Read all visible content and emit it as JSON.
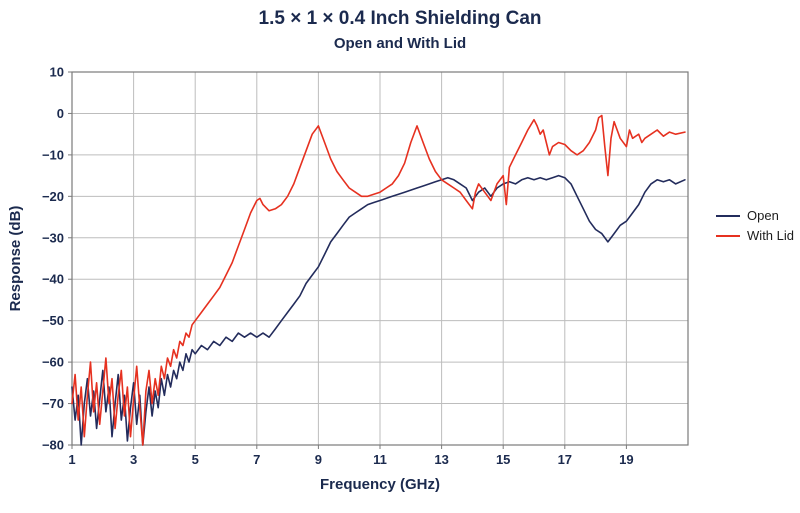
{
  "colors": {
    "background": "#ffffff",
    "title_text": "#1b2a4e",
    "axis_text": "#1b2a4e",
    "grid": "#bdbdbd",
    "frame": "#7a7a7a",
    "open_line": "#232c5c",
    "with_lid_line": "#e63120"
  },
  "chart_data": {
    "type": "line",
    "title": "1.5 × 1 × 0.4 Inch Shielding Can",
    "subtitle": "Open and With Lid",
    "xlabel": "Frequency (GHz)",
    "ylabel": "Response (dB)",
    "xlim": [
      1,
      21
    ],
    "ylim": [
      -80,
      10
    ],
    "xticks": [
      1,
      3,
      5,
      7,
      9,
      11,
      13,
      15,
      17,
      19
    ],
    "yticks": [
      10,
      0,
      -10,
      -20,
      -30,
      -40,
      -50,
      -60,
      -70,
      -80
    ],
    "grid": true,
    "legend_position": "right",
    "series": [
      {
        "name": "Open",
        "color": "#232c5c",
        "points": [
          [
            1.0,
            -66
          ],
          [
            1.1,
            -74
          ],
          [
            1.2,
            -68
          ],
          [
            1.3,
            -80
          ],
          [
            1.4,
            -70
          ],
          [
            1.5,
            -64
          ],
          [
            1.6,
            -73
          ],
          [
            1.7,
            -67
          ],
          [
            1.8,
            -76
          ],
          [
            1.9,
            -69
          ],
          [
            2.0,
            -62
          ],
          [
            2.1,
            -72
          ],
          [
            2.2,
            -66
          ],
          [
            2.3,
            -78
          ],
          [
            2.4,
            -70
          ],
          [
            2.5,
            -63
          ],
          [
            2.6,
            -74
          ],
          [
            2.7,
            -68
          ],
          [
            2.8,
            -79
          ],
          [
            2.9,
            -71
          ],
          [
            3.0,
            -65
          ],
          [
            3.1,
            -75
          ],
          [
            3.2,
            -68
          ],
          [
            3.3,
            -80
          ],
          [
            3.4,
            -72
          ],
          [
            3.5,
            -66
          ],
          [
            3.6,
            -73
          ],
          [
            3.7,
            -67
          ],
          [
            3.8,
            -71
          ],
          [
            3.9,
            -64
          ],
          [
            4.0,
            -68
          ],
          [
            4.1,
            -63
          ],
          [
            4.2,
            -66
          ],
          [
            4.3,
            -62
          ],
          [
            4.4,
            -64
          ],
          [
            4.5,
            -60
          ],
          [
            4.6,
            -62
          ],
          [
            4.7,
            -58
          ],
          [
            4.8,
            -60
          ],
          [
            4.9,
            -57
          ],
          [
            5.0,
            -58
          ],
          [
            5.2,
            -56
          ],
          [
            5.4,
            -57
          ],
          [
            5.6,
            -55
          ],
          [
            5.8,
            -56
          ],
          [
            6.0,
            -54
          ],
          [
            6.2,
            -55
          ],
          [
            6.4,
            -53
          ],
          [
            6.6,
            -54
          ],
          [
            6.8,
            -53
          ],
          [
            7.0,
            -54
          ],
          [
            7.2,
            -53
          ],
          [
            7.4,
            -54
          ],
          [
            7.6,
            -52
          ],
          [
            7.8,
            -50
          ],
          [
            8.0,
            -48
          ],
          [
            8.2,
            -46
          ],
          [
            8.4,
            -44
          ],
          [
            8.6,
            -41
          ],
          [
            8.8,
            -39
          ],
          [
            9.0,
            -37
          ],
          [
            9.2,
            -34
          ],
          [
            9.4,
            -31
          ],
          [
            9.6,
            -29
          ],
          [
            9.8,
            -27
          ],
          [
            10.0,
            -25
          ],
          [
            10.2,
            -24
          ],
          [
            10.4,
            -23
          ],
          [
            10.6,
            -22
          ],
          [
            10.8,
            -21.5
          ],
          [
            11.0,
            -21
          ],
          [
            11.2,
            -20.5
          ],
          [
            11.4,
            -20
          ],
          [
            11.6,
            -19.5
          ],
          [
            11.8,
            -19
          ],
          [
            12.0,
            -18.5
          ],
          [
            12.2,
            -18
          ],
          [
            12.4,
            -17.5
          ],
          [
            12.6,
            -17
          ],
          [
            12.8,
            -16.5
          ],
          [
            13.0,
            -16
          ],
          [
            13.2,
            -15.5
          ],
          [
            13.4,
            -16
          ],
          [
            13.6,
            -17
          ],
          [
            13.8,
            -18
          ],
          [
            14.0,
            -21
          ],
          [
            14.2,
            -19
          ],
          [
            14.4,
            -18
          ],
          [
            14.6,
            -20
          ],
          [
            14.8,
            -18
          ],
          [
            15.0,
            -17
          ],
          [
            15.2,
            -16.5
          ],
          [
            15.4,
            -17
          ],
          [
            15.6,
            -16
          ],
          [
            15.8,
            -15.5
          ],
          [
            16.0,
            -16
          ],
          [
            16.2,
            -15.5
          ],
          [
            16.4,
            -16
          ],
          [
            16.6,
            -15.5
          ],
          [
            16.8,
            -15
          ],
          [
            17.0,
            -15.5
          ],
          [
            17.2,
            -17
          ],
          [
            17.4,
            -20
          ],
          [
            17.6,
            -23
          ],
          [
            17.8,
            -26
          ],
          [
            18.0,
            -28
          ],
          [
            18.2,
            -29
          ],
          [
            18.4,
            -31
          ],
          [
            18.6,
            -29
          ],
          [
            18.8,
            -27
          ],
          [
            19.0,
            -26
          ],
          [
            19.2,
            -24
          ],
          [
            19.4,
            -22
          ],
          [
            19.6,
            -19
          ],
          [
            19.8,
            -17
          ],
          [
            20.0,
            -16
          ],
          [
            20.2,
            -16.5
          ],
          [
            20.4,
            -16
          ],
          [
            20.6,
            -17
          ],
          [
            20.9,
            -16
          ]
        ]
      },
      {
        "name": "With Lid",
        "color": "#e63120",
        "points": [
          [
            1.0,
            -70
          ],
          [
            1.1,
            -63
          ],
          [
            1.2,
            -74
          ],
          [
            1.3,
            -66
          ],
          [
            1.4,
            -78
          ],
          [
            1.5,
            -68
          ],
          [
            1.6,
            -60
          ],
          [
            1.7,
            -72
          ],
          [
            1.8,
            -65
          ],
          [
            1.9,
            -75
          ],
          [
            2.0,
            -67
          ],
          [
            2.1,
            -59
          ],
          [
            2.2,
            -70
          ],
          [
            2.3,
            -64
          ],
          [
            2.4,
            -76
          ],
          [
            2.5,
            -68
          ],
          [
            2.6,
            -62
          ],
          [
            2.7,
            -73
          ],
          [
            2.8,
            -66
          ],
          [
            2.9,
            -78
          ],
          [
            3.0,
            -69
          ],
          [
            3.1,
            -61
          ],
          [
            3.2,
            -71
          ],
          [
            3.3,
            -80
          ],
          [
            3.4,
            -67
          ],
          [
            3.5,
            -62
          ],
          [
            3.6,
            -70
          ],
          [
            3.7,
            -64
          ],
          [
            3.8,
            -68
          ],
          [
            3.9,
            -61
          ],
          [
            4.0,
            -64
          ],
          [
            4.1,
            -59
          ],
          [
            4.2,
            -61
          ],
          [
            4.3,
            -57
          ],
          [
            4.4,
            -59
          ],
          [
            4.5,
            -55
          ],
          [
            4.6,
            -56
          ],
          [
            4.7,
            -53
          ],
          [
            4.8,
            -54
          ],
          [
            4.9,
            -51
          ],
          [
            5.0,
            -50
          ],
          [
            5.2,
            -48
          ],
          [
            5.4,
            -46
          ],
          [
            5.6,
            -44
          ],
          [
            5.8,
            -42
          ],
          [
            6.0,
            -39
          ],
          [
            6.2,
            -36
          ],
          [
            6.4,
            -32
          ],
          [
            6.6,
            -28
          ],
          [
            6.8,
            -24
          ],
          [
            7.0,
            -21
          ],
          [
            7.1,
            -20.5
          ],
          [
            7.2,
            -22
          ],
          [
            7.4,
            -23.5
          ],
          [
            7.6,
            -23
          ],
          [
            7.8,
            -22
          ],
          [
            8.0,
            -20
          ],
          [
            8.2,
            -17
          ],
          [
            8.4,
            -13
          ],
          [
            8.6,
            -9
          ],
          [
            8.8,
            -5
          ],
          [
            9.0,
            -3
          ],
          [
            9.2,
            -7
          ],
          [
            9.4,
            -11
          ],
          [
            9.6,
            -14
          ],
          [
            9.8,
            -16
          ],
          [
            10.0,
            -18
          ],
          [
            10.2,
            -19
          ],
          [
            10.4,
            -20
          ],
          [
            10.6,
            -20
          ],
          [
            10.8,
            -19.5
          ],
          [
            11.0,
            -19
          ],
          [
            11.2,
            -18
          ],
          [
            11.4,
            -17
          ],
          [
            11.6,
            -15
          ],
          [
            11.8,
            -12
          ],
          [
            12.0,
            -7
          ],
          [
            12.2,
            -3
          ],
          [
            12.4,
            -7
          ],
          [
            12.6,
            -11
          ],
          [
            12.8,
            -14
          ],
          [
            13.0,
            -16
          ],
          [
            13.2,
            -17
          ],
          [
            13.4,
            -18
          ],
          [
            13.6,
            -19
          ],
          [
            13.8,
            -21
          ],
          [
            14.0,
            -23
          ],
          [
            14.1,
            -19
          ],
          [
            14.2,
            -17
          ],
          [
            14.4,
            -19
          ],
          [
            14.6,
            -21
          ],
          [
            14.8,
            -17
          ],
          [
            15.0,
            -15
          ],
          [
            15.1,
            -22
          ],
          [
            15.2,
            -13
          ],
          [
            15.4,
            -10
          ],
          [
            15.6,
            -7
          ],
          [
            15.8,
            -4
          ],
          [
            16.0,
            -1.5
          ],
          [
            16.1,
            -3
          ],
          [
            16.2,
            -5
          ],
          [
            16.3,
            -4
          ],
          [
            16.4,
            -7
          ],
          [
            16.5,
            -10
          ],
          [
            16.6,
            -8
          ],
          [
            16.8,
            -7
          ],
          [
            17.0,
            -7.5
          ],
          [
            17.2,
            -9
          ],
          [
            17.4,
            -10
          ],
          [
            17.6,
            -9
          ],
          [
            17.8,
            -7
          ],
          [
            18.0,
            -4
          ],
          [
            18.1,
            -1
          ],
          [
            18.2,
            -0.5
          ],
          [
            18.3,
            -8
          ],
          [
            18.4,
            -15
          ],
          [
            18.5,
            -6
          ],
          [
            18.6,
            -2
          ],
          [
            18.8,
            -6
          ],
          [
            19.0,
            -8
          ],
          [
            19.1,
            -4
          ],
          [
            19.2,
            -6
          ],
          [
            19.4,
            -5
          ],
          [
            19.5,
            -7
          ],
          [
            19.6,
            -6
          ],
          [
            19.8,
            -5
          ],
          [
            20.0,
            -4
          ],
          [
            20.2,
            -5.5
          ],
          [
            20.4,
            -4.5
          ],
          [
            20.6,
            -5
          ],
          [
            20.9,
            -4.5
          ]
        ]
      }
    ]
  }
}
